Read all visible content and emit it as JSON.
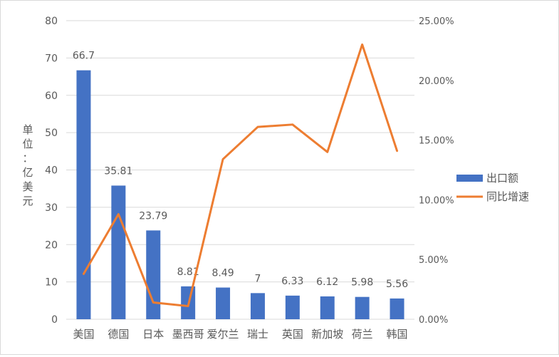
{
  "chart_data": {
    "type": "bar",
    "categories": [
      "美国",
      "德国",
      "日本",
      "墨西哥",
      "爱尔兰",
      "瑞士",
      "英国",
      "新加坡",
      "荷兰",
      "韩国"
    ],
    "series": [
      {
        "name": "出口额",
        "type": "bar",
        "axis": "left",
        "color": "#4472c4",
        "values": [
          66.7,
          35.81,
          23.79,
          8.81,
          8.49,
          7,
          6.33,
          6.12,
          5.98,
          5.56
        ],
        "labels": [
          "66.7",
          "35.81",
          "23.79",
          "8.81",
          "8.49",
          "7",
          "6.33",
          "6.12",
          "5.98",
          "5.56"
        ]
      },
      {
        "name": "同比增速",
        "type": "line",
        "axis": "right",
        "color": "#ed7d31",
        "values": [
          0.038,
          0.088,
          0.014,
          0.011,
          0.134,
          0.161,
          0.163,
          0.14,
          0.23,
          0.141
        ]
      }
    ],
    "ylabel": "单位：亿美元",
    "ylim": [
      0,
      80
    ],
    "yticks": [
      "0",
      "10",
      "20",
      "30",
      "40",
      "50",
      "60",
      "70",
      "80"
    ],
    "y2lim": [
      0,
      0.25
    ],
    "y2ticks": [
      "0.00%",
      "5.00%",
      "10.00%",
      "15.00%",
      "20.00%",
      "25.00%"
    ],
    "grid": true,
    "legend": "right"
  }
}
